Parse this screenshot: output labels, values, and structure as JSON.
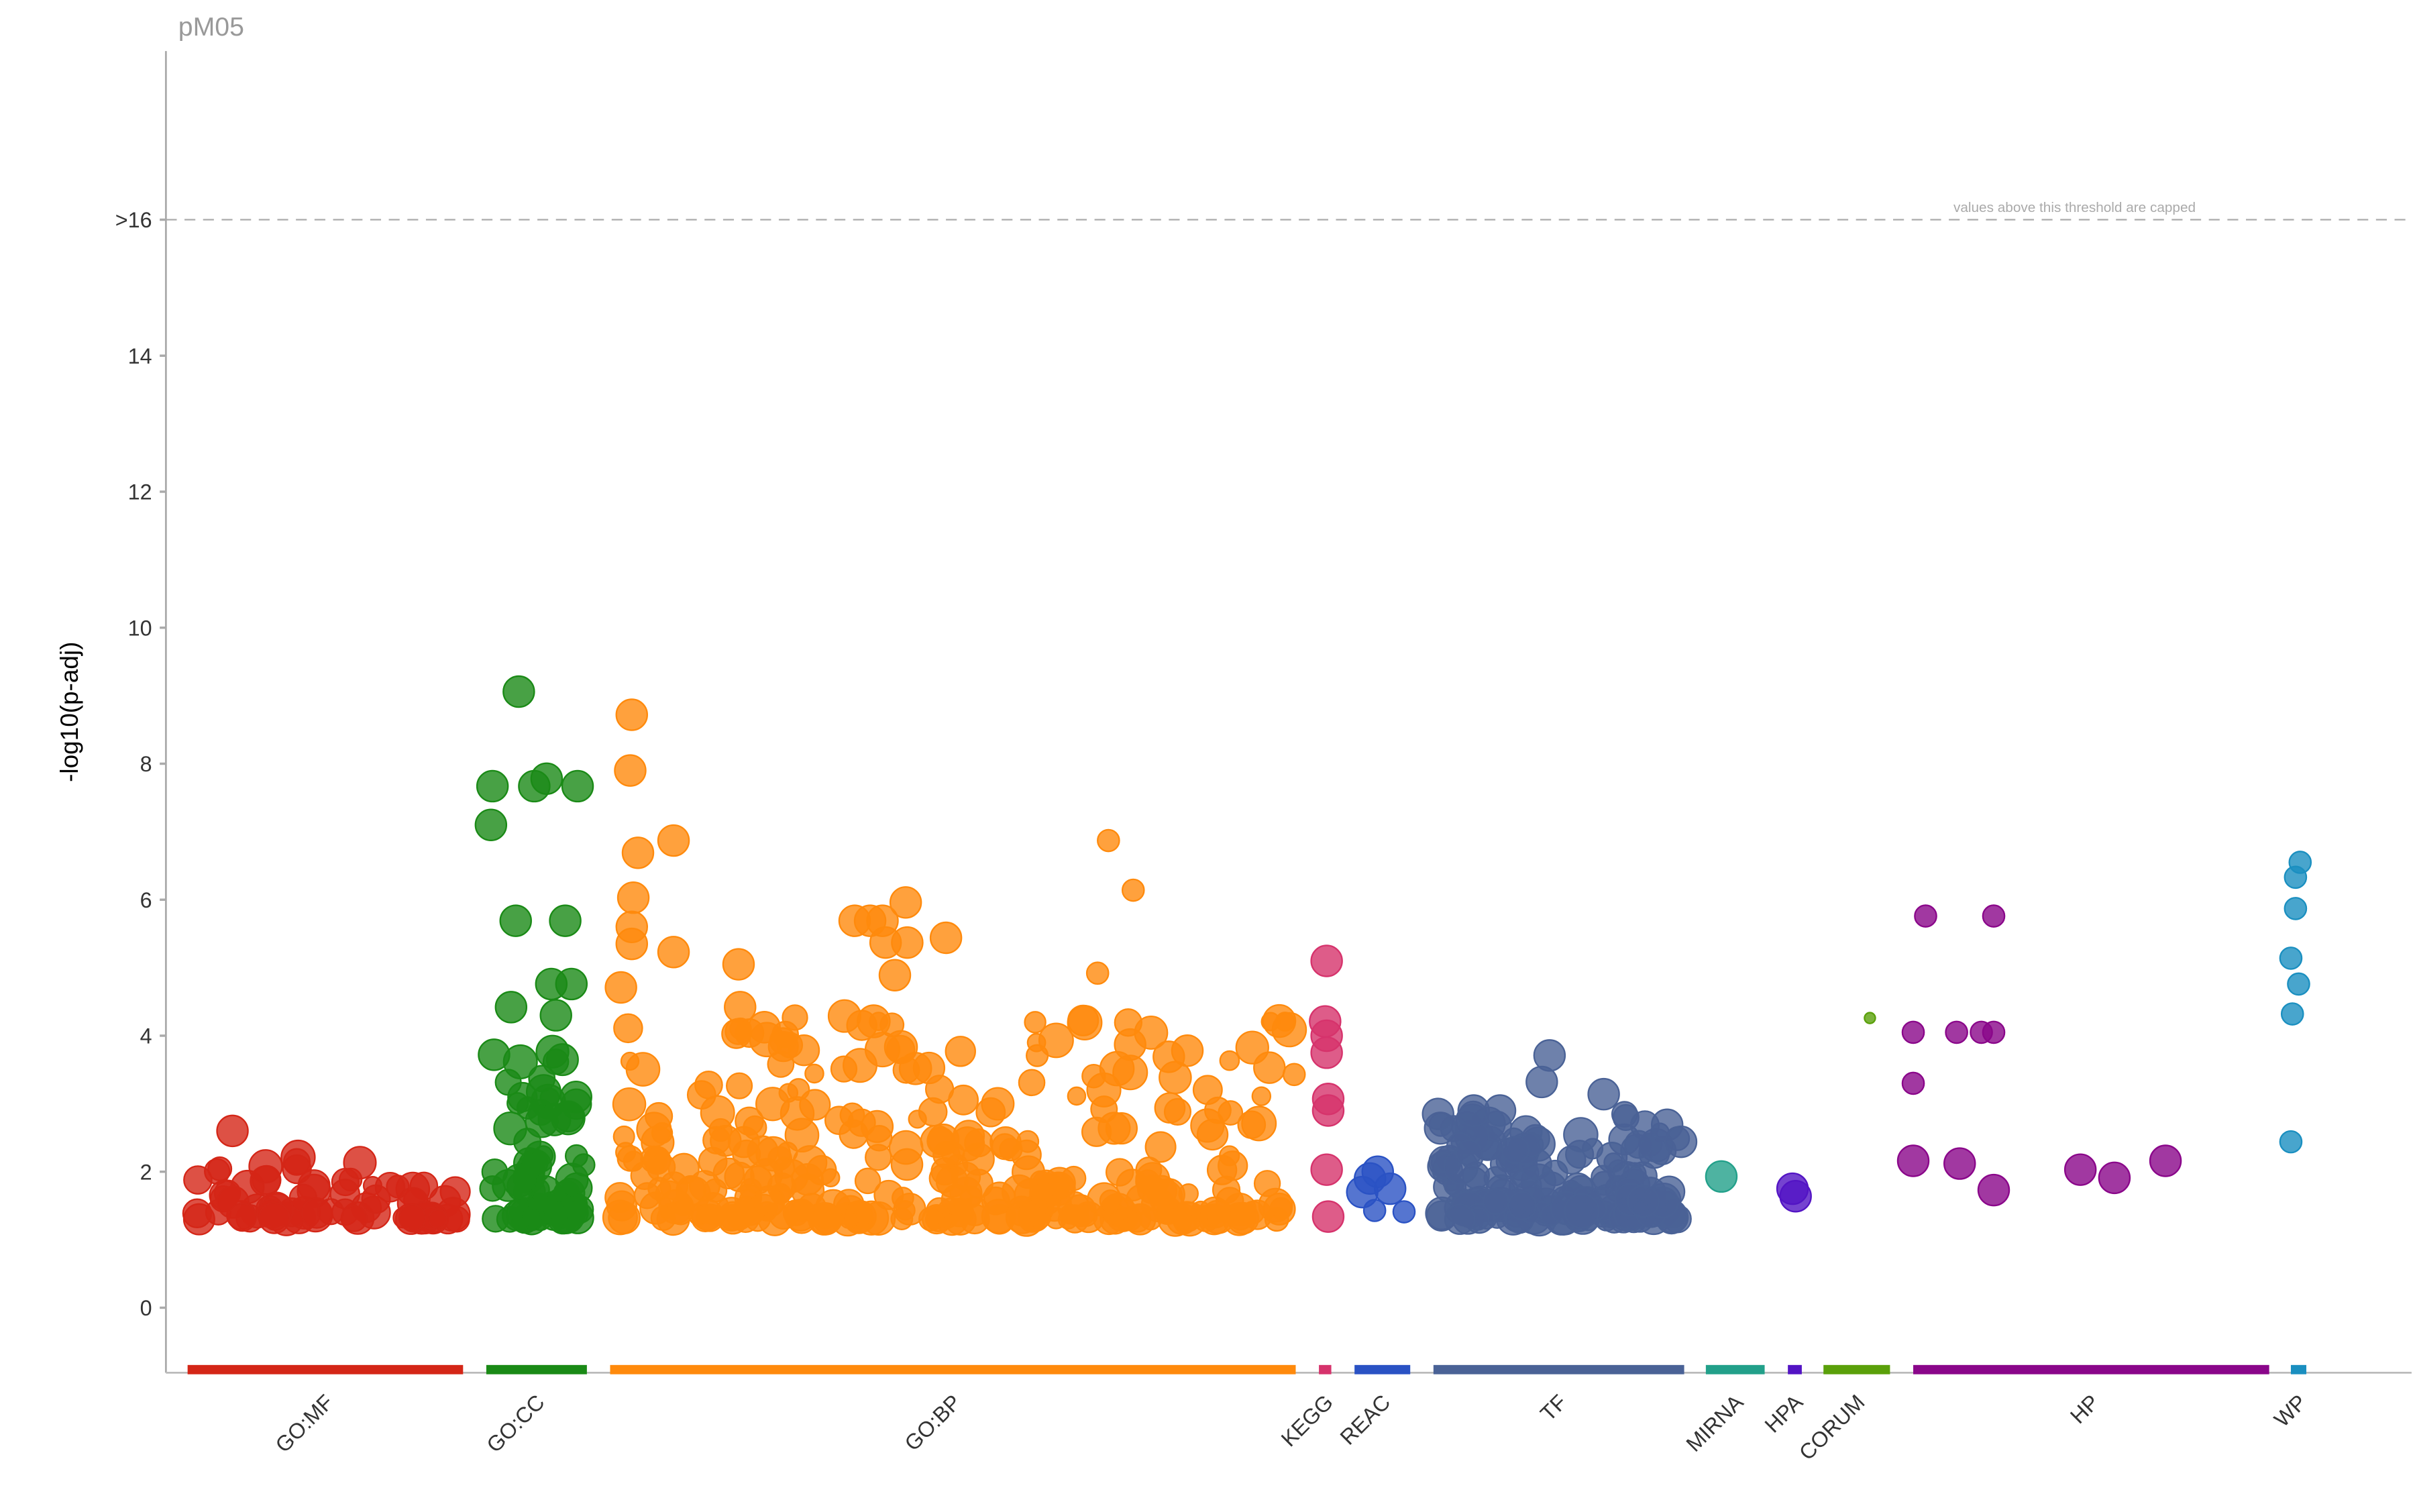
{
  "chart_data": {
    "type": "scatter",
    "title": "pM05",
    "xlabel": "",
    "ylabel": "-log10(p-adj)",
    "ylim": [
      -1,
      18.5
    ],
    "xlim": [
      0,
      1450
    ],
    "y_ticks": [
      {
        "value": 0,
        "label": "0"
      },
      {
        "value": 2,
        "label": "2"
      },
      {
        "value": 4,
        "label": "4"
      },
      {
        "value": 6,
        "label": "6"
      },
      {
        "value": 8,
        "label": "8"
      },
      {
        "value": 10,
        "label": "10"
      },
      {
        "value": 12,
        "label": "12"
      },
      {
        "value": 14,
        "label": "14"
      },
      {
        "value": 16,
        "label": ">16"
      }
    ],
    "threshold": {
      "value": 16,
      "note": "values above this threshold are capped"
    },
    "grid": false,
    "sources": [
      {
        "name": "GO:MF",
        "color": "#d42617",
        "range": [
          14,
          192
        ],
        "bulk": {
          "n": 70,
          "ymin": 1.3,
          "ymax": 2.3
        },
        "points": [
          [
            43,
            2.6,
            2
          ]
        ]
      },
      {
        "name": "GO:CC",
        "color": "#1a8a16",
        "range": [
          207,
          272
        ],
        "bulk": {
          "n": 70,
          "ymin": 1.3,
          "ymax": 3.9
        },
        "points": [
          [
            228,
            9.06,
            2
          ],
          [
            211,
            7.67,
            2
          ],
          [
            238,
            7.67,
            2
          ],
          [
            246,
            7.78,
            2
          ],
          [
            266,
            7.67,
            2
          ],
          [
            210,
            7.1,
            2
          ],
          [
            226,
            5.69,
            2
          ],
          [
            258,
            5.69,
            2
          ],
          [
            249,
            4.76,
            2
          ],
          [
            262,
            4.76,
            2
          ],
          [
            223,
            4.42,
            2
          ],
          [
            252,
            4.3,
            2
          ],
          [
            212,
            3.72,
            2
          ],
          [
            265,
            3.1,
            2
          ],
          [
            270,
            2.1,
            1
          ]
        ]
      },
      {
        "name": "GO:BP",
        "color": "#ff8a0c",
        "range": [
          287,
          730
        ],
        "bulk": {
          "n": 320,
          "ymin": 1.3,
          "ymax": 4.3
        },
        "points": [
          [
            301,
            8.72,
            2
          ],
          [
            300,
            7.9,
            2
          ],
          [
            305,
            6.69,
            2
          ],
          [
            328,
            6.87,
            2
          ],
          [
            302,
            6.03,
            2
          ],
          [
            301,
            5.6,
            2
          ],
          [
            301,
            5.35,
            2
          ],
          [
            328,
            5.23,
            2
          ],
          [
            294,
            4.71,
            2
          ],
          [
            370,
            5.05,
            2
          ],
          [
            371,
            4.42,
            2
          ],
          [
            445,
            5.69,
            2
          ],
          [
            455,
            5.69,
            2
          ],
          [
            463,
            5.69,
            2
          ],
          [
            478,
            5.96,
            2
          ],
          [
            465,
            5.37,
            2
          ],
          [
            479,
            5.37,
            2
          ],
          [
            471,
            4.89,
            2
          ],
          [
            504,
            5.44,
            2
          ],
          [
            609,
            6.87,
            1
          ],
          [
            625,
            6.14,
            1
          ],
          [
            602,
            4.92,
            1
          ],
          [
            623,
            3.87,
            2
          ],
          [
            648,
            3.69,
            2
          ],
          [
            660,
            3.78,
            2
          ],
          [
            713,
            3.53,
            2
          ],
          [
            729,
            3.43,
            1
          ]
        ]
      },
      {
        "name": "KEGG",
        "color": "#d6336c",
        "range": [
          745,
          753
        ],
        "points": [
          [
            750,
            5.1,
            2
          ],
          [
            749,
            4.21,
            2
          ],
          [
            750,
            4.0,
            2
          ],
          [
            750,
            3.75,
            2
          ],
          [
            751,
            3.07,
            2
          ],
          [
            751,
            2.9,
            2
          ],
          [
            750,
            2.03,
            2
          ],
          [
            751,
            1.34,
            2
          ]
        ]
      },
      {
        "name": "REAC",
        "color": "#2a52c4",
        "range": [
          768,
          804
        ],
        "points": [
          [
            783,
            2.0,
            2
          ],
          [
            778,
            1.9,
            2
          ],
          [
            773,
            1.7,
            2
          ],
          [
            791,
            1.75,
            2
          ],
          [
            781,
            1.43,
            1
          ],
          [
            800,
            1.41,
            1
          ]
        ]
      },
      {
        "name": "TF",
        "color": "#4a6296",
        "range": [
          819,
          981
        ],
        "bulk": {
          "n": 170,
          "ymin": 1.3,
          "ymax": 2.9
        },
        "points": [
          [
            894,
            3.71,
            2
          ],
          [
            889,
            3.32,
            2
          ],
          [
            929,
            3.14,
            2
          ],
          [
            970,
            2.69,
            2
          ],
          [
            979,
            2.44,
            2
          ],
          [
            822,
            2.85,
            2
          ],
          [
            845,
            2.9,
            2
          ],
          [
            862,
            2.9,
            2
          ]
        ]
      },
      {
        "name": "MIRNA",
        "color": "#22a08a",
        "range": [
          995,
          1033
        ],
        "points": [
          [
            1005,
            1.93,
            2
          ]
        ]
      },
      {
        "name": "HPA",
        "color": "#5314c4",
        "range": [
          1048,
          1057
        ],
        "points": [
          [
            1051,
            1.75,
            2
          ],
          [
            1053,
            1.64,
            2
          ]
        ]
      },
      {
        "name": "CORUM",
        "color": "#5aa00a",
        "range": [
          1071,
          1114
        ],
        "points": [
          [
            1101,
            4.26,
            0
          ]
        ]
      },
      {
        "name": "HP",
        "color": "#8a068a",
        "range": [
          1129,
          1359
        ],
        "points": [
          [
            1137,
            5.76,
            1
          ],
          [
            1181,
            5.76,
            1
          ],
          [
            1129,
            4.05,
            1
          ],
          [
            1157,
            4.05,
            1
          ],
          [
            1173,
            4.05,
            1
          ],
          [
            1181,
            4.05,
            1
          ],
          [
            1129,
            3.3,
            1
          ],
          [
            1129,
            2.16,
            2
          ],
          [
            1159,
            2.12,
            2
          ],
          [
            1181,
            1.73,
            2
          ],
          [
            1237,
            2.03,
            2
          ],
          [
            1259,
            1.91,
            2
          ],
          [
            1292,
            2.16,
            2
          ]
        ]
      },
      {
        "name": "WP",
        "color": "#1a8fc0",
        "range": [
          1373,
          1383
        ],
        "points": [
          [
            1379,
            6.55,
            1
          ],
          [
            1376,
            6.33,
            1
          ],
          [
            1376,
            5.87,
            1
          ],
          [
            1373,
            5.14,
            1
          ],
          [
            1378,
            4.76,
            1
          ],
          [
            1374,
            4.32,
            1
          ],
          [
            1373,
            2.44,
            1
          ]
        ]
      }
    ]
  }
}
